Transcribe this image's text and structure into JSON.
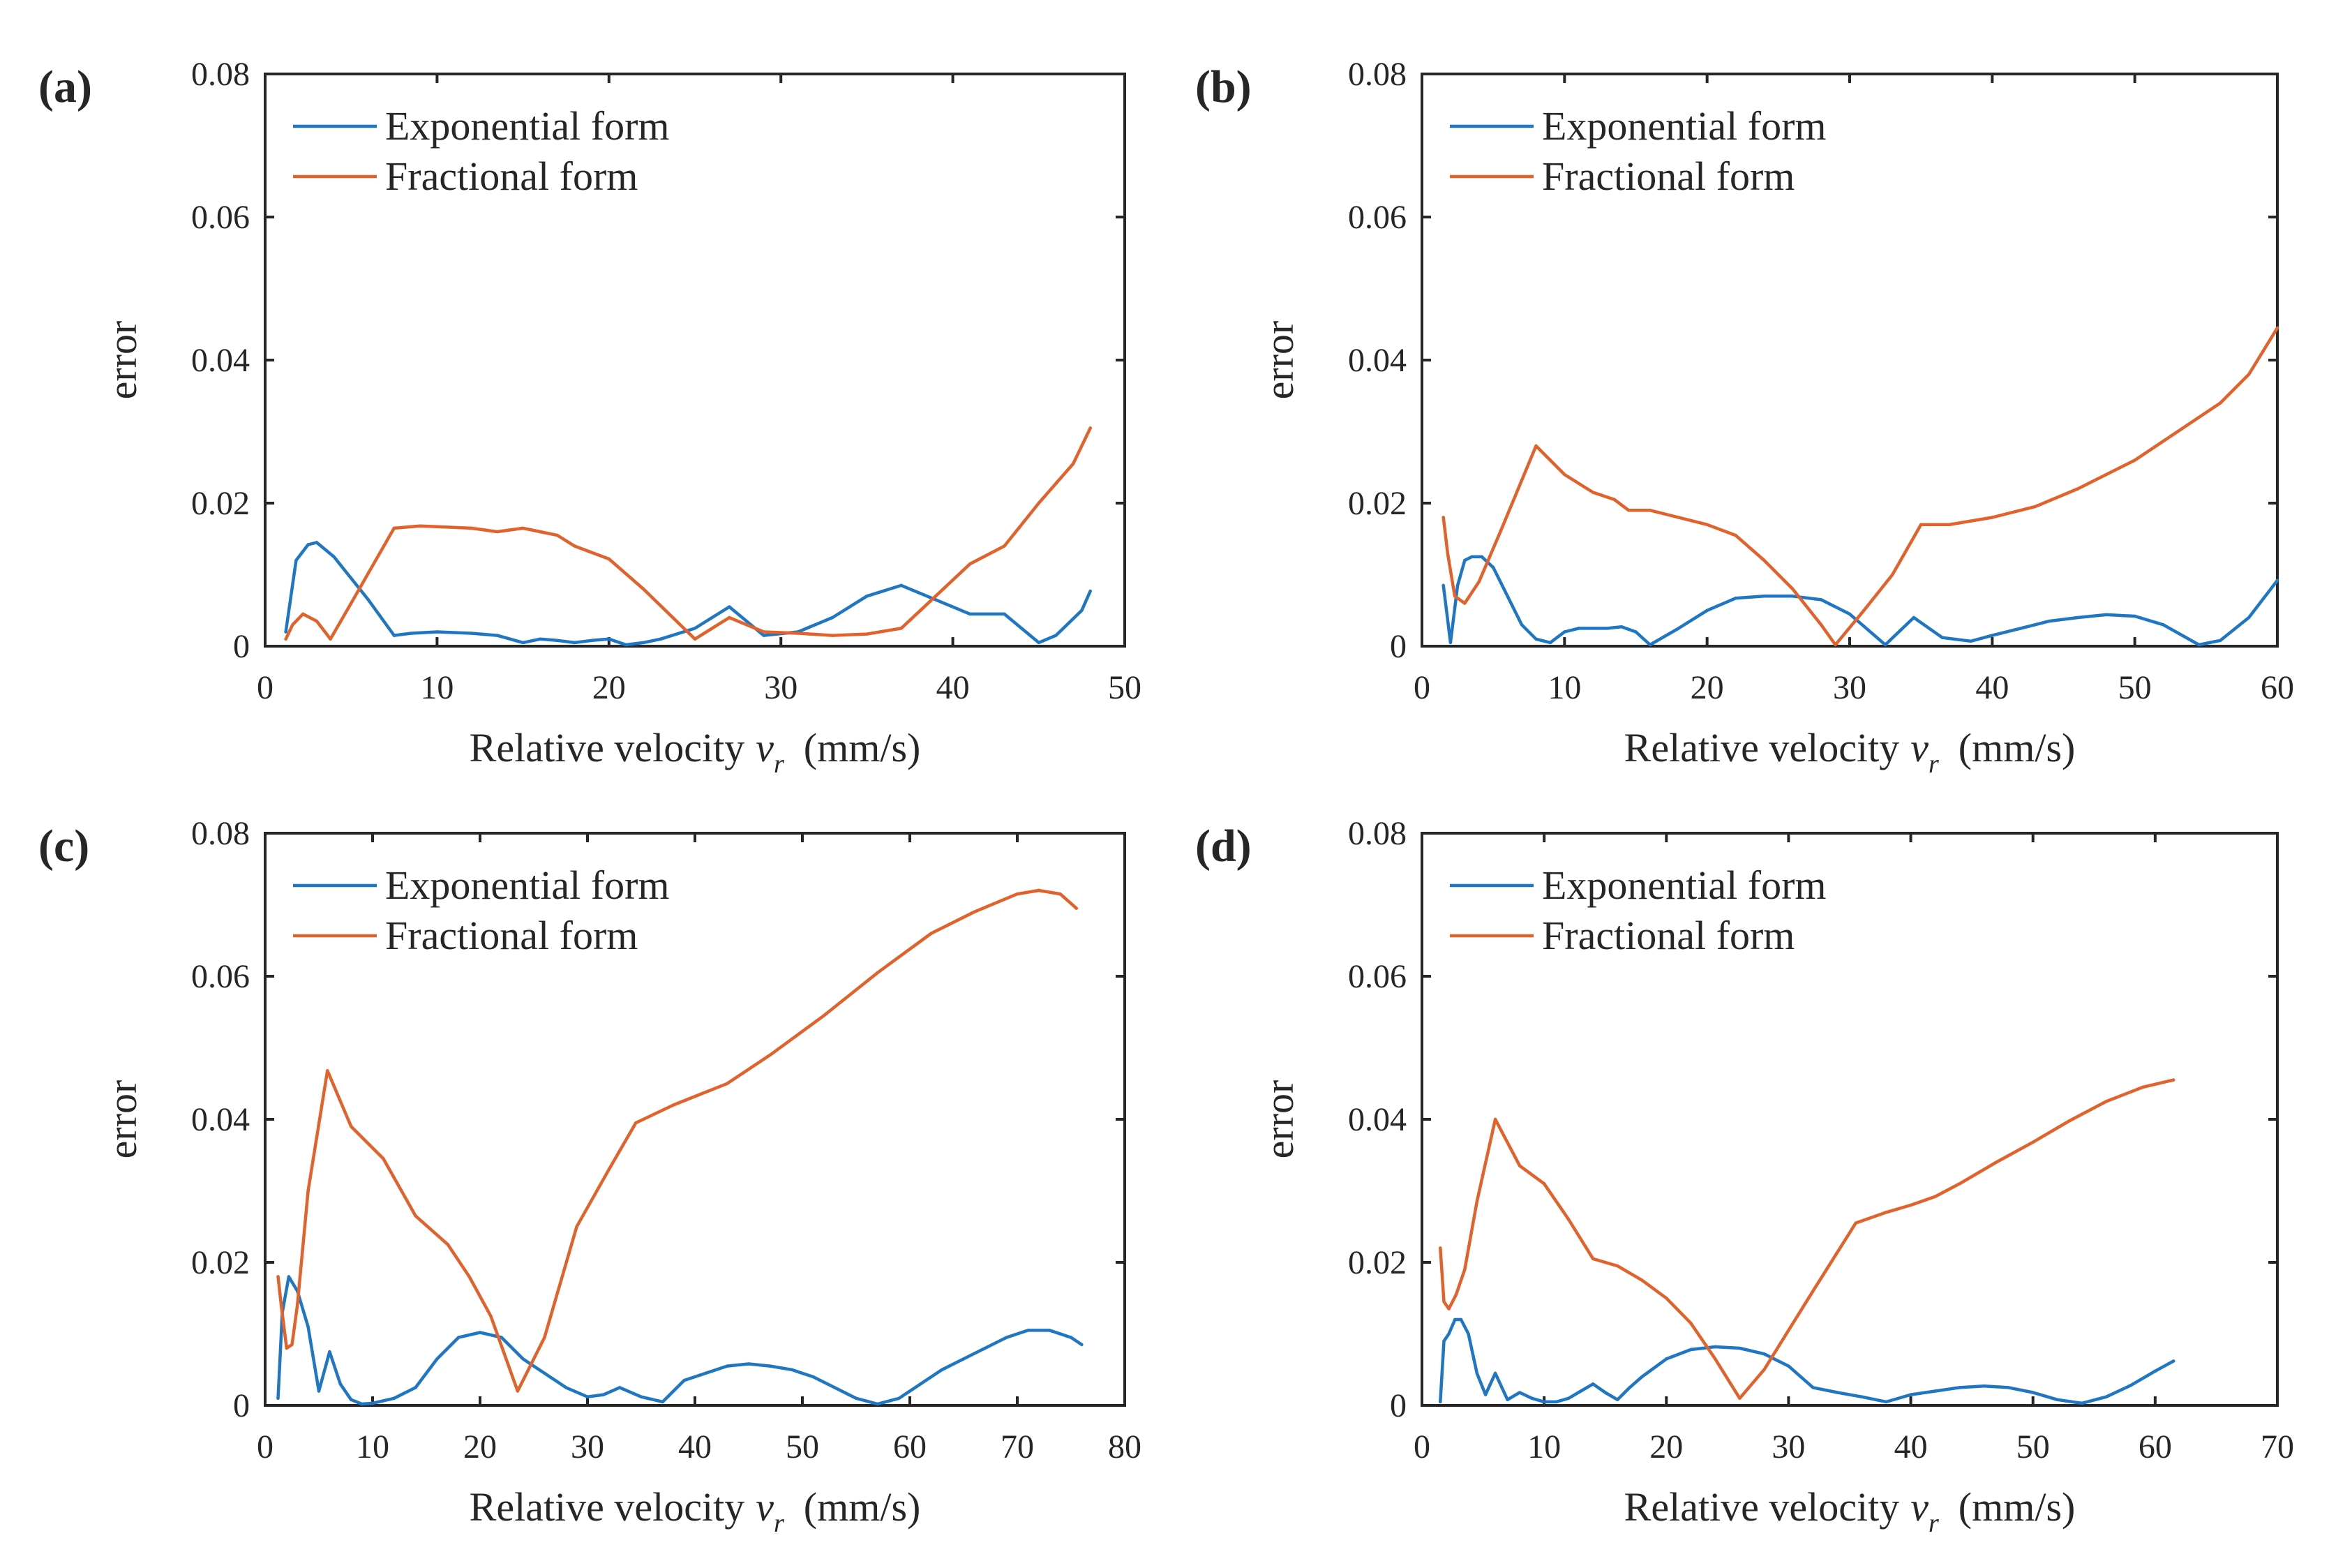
{
  "colors": {
    "exponential": "#1f77c4",
    "fractional": "#e1622b",
    "axis": "#262626"
  },
  "chart_data": [
    {
      "type": "line",
      "panel": "(a)",
      "xlabel_main": "Relative velocity",
      "xlabel_var": "v",
      "xlabel_sub": "r",
      "xlabel_unit": "(mm/s)",
      "ylabel": "error",
      "xlim": [
        0,
        50
      ],
      "ylim": [
        0,
        0.08
      ],
      "xticks": [
        0,
        10,
        20,
        30,
        40,
        50
      ],
      "xtick_labels": [
        "0",
        "10",
        "20",
        "30",
        "40",
        "50"
      ],
      "yticks": [
        0,
        0.02,
        0.04,
        0.06,
        0.08
      ],
      "ytick_labels": [
        "0",
        "0.02",
        "0.04",
        "0.06",
        "0.08"
      ],
      "legend_position": "top-left",
      "series": [
        {
          "name": "Exponential form",
          "x": [
            1.2,
            1.8,
            2.5,
            3,
            4,
            5,
            6,
            7.5,
            8.5,
            10,
            12,
            13.5,
            15,
            16,
            17,
            18,
            19,
            20,
            21,
            22,
            23,
            25,
            27,
            29,
            31,
            33,
            35,
            37,
            39,
            41,
            43,
            45,
            46,
            47.5,
            48
          ],
          "y": [
            0.002,
            0.012,
            0.0142,
            0.0145,
            0.0125,
            0.0095,
            0.0065,
            0.0015,
            0.0018,
            0.002,
            0.0018,
            0.0015,
            0.0005,
            0.001,
            0.0008,
            0.0005,
            0.0008,
            0.001,
            0.0002,
            0.0005,
            0.001,
            0.0025,
            0.0055,
            0.0015,
            0.002,
            0.004,
            0.007,
            0.0085,
            0.0065,
            0.0045,
            0.0045,
            0.0005,
            0.0015,
            0.005,
            0.0077
          ]
        },
        {
          "name": "Fractional form",
          "x": [
            1.2,
            1.6,
            2.2,
            3,
            3.8,
            5,
            7.5,
            9,
            10,
            12,
            13.5,
            15,
            16,
            17,
            18,
            20,
            22,
            25,
            27,
            29,
            31,
            33,
            35,
            37,
            39,
            41,
            43,
            45,
            47,
            48
          ],
          "y": [
            0.001,
            0.003,
            0.0045,
            0.0035,
            0.001,
            0.006,
            0.0165,
            0.0168,
            0.0167,
            0.0165,
            0.016,
            0.0165,
            0.016,
            0.0155,
            0.014,
            0.0122,
            0.008,
            0.001,
            0.004,
            0.002,
            0.0018,
            0.0015,
            0.0017,
            0.0025,
            0.007,
            0.0115,
            0.014,
            0.02,
            0.0255,
            0.0305
          ]
        }
      ]
    },
    {
      "type": "line",
      "panel": "(b)",
      "xlabel_main": "Relative velocity",
      "xlabel_var": "v",
      "xlabel_sub": "r",
      "xlabel_unit": "(mm/s)",
      "ylabel": "error",
      "xlim": [
        0,
        60
      ],
      "ylim": [
        0,
        0.08
      ],
      "xticks": [
        0,
        10,
        20,
        30,
        40,
        50,
        60
      ],
      "xtick_labels": [
        "0",
        "10",
        "20",
        "30",
        "40",
        "50",
        "60"
      ],
      "yticks": [
        0,
        0.02,
        0.04,
        0.06,
        0.08
      ],
      "ytick_labels": [
        "0",
        "0.02",
        "0.04",
        "0.06",
        "0.08"
      ],
      "legend_position": "top-left",
      "series": [
        {
          "name": "Exponential form",
          "x": [
            1.5,
            2,
            2.5,
            3,
            3.5,
            4.2,
            5,
            6,
            7,
            8,
            9,
            10,
            11,
            12,
            13,
            14,
            15,
            16,
            18,
            20,
            22,
            24,
            26,
            28,
            30,
            32.5,
            34.5,
            36.5,
            38.5,
            40,
            42,
            44,
            46,
            48,
            50,
            52,
            54.5,
            56,
            58,
            60
          ],
          "y": [
            0.0085,
            0.0005,
            0.0085,
            0.012,
            0.0125,
            0.0125,
            0.011,
            0.007,
            0.003,
            0.001,
            0.0005,
            0.002,
            0.0025,
            0.0025,
            0.0025,
            0.0027,
            0.002,
            0.0002,
            0.0025,
            0.005,
            0.0067,
            0.007,
            0.007,
            0.0065,
            0.0045,
            0.0002,
            0.004,
            0.0012,
            0.0007,
            0.0015,
            0.0025,
            0.0035,
            0.004,
            0.0044,
            0.0042,
            0.003,
            0.0002,
            0.0008,
            0.004,
            0.0092
          ]
        },
        {
          "name": "Fractional form",
          "x": [
            1.5,
            1.8,
            2.3,
            3,
            4,
            5.5,
            8,
            10,
            12,
            13.5,
            14.5,
            16,
            18,
            20,
            22,
            24,
            26,
            28,
            29,
            31,
            33,
            35,
            37,
            40,
            43,
            46,
            50,
            53,
            56,
            58,
            60
          ],
          "y": [
            0.018,
            0.013,
            0.007,
            0.006,
            0.009,
            0.016,
            0.028,
            0.024,
            0.0215,
            0.0205,
            0.019,
            0.019,
            0.018,
            0.017,
            0.0155,
            0.012,
            0.008,
            0.003,
            0.0002,
            0.005,
            0.01,
            0.017,
            0.017,
            0.018,
            0.0195,
            0.022,
            0.026,
            0.03,
            0.034,
            0.038,
            0.0445
          ]
        }
      ]
    },
    {
      "type": "line",
      "panel": "(c)",
      "xlabel_main": "Relative velocity",
      "xlabel_var": "v",
      "xlabel_sub": "r",
      "xlabel_unit": "(mm/s)",
      "ylabel": "error",
      "xlim": [
        0,
        80
      ],
      "ylim": [
        0,
        0.08
      ],
      "xticks": [
        0,
        10,
        20,
        30,
        40,
        50,
        60,
        70,
        80
      ],
      "xtick_labels": [
        "0",
        "10",
        "20",
        "30",
        "40",
        "50",
        "60",
        "70",
        "80"
      ],
      "yticks": [
        0,
        0.02,
        0.04,
        0.06,
        0.08
      ],
      "ytick_labels": [
        "0",
        "0.02",
        "0.04",
        "0.06",
        "0.08"
      ],
      "legend_position": "top-left",
      "series": [
        {
          "name": "Exponential form",
          "x": [
            1.2,
            1.6,
            2.2,
            3,
            4,
            5,
            6,
            7,
            8,
            9,
            10,
            12,
            14,
            16,
            18,
            20,
            22,
            24,
            26,
            28,
            30,
            31.5,
            33,
            35,
            37,
            39,
            41,
            43,
            45,
            47,
            49,
            51,
            53,
            55,
            57,
            59,
            61,
            63,
            65,
            67,
            69,
            71,
            73,
            75,
            76
          ],
          "y": [
            0.001,
            0.013,
            0.018,
            0.016,
            0.011,
            0.002,
            0.0075,
            0.003,
            0.0008,
            0.0002,
            0.0003,
            0.001,
            0.0025,
            0.0065,
            0.0095,
            0.0102,
            0.0095,
            0.0065,
            0.0045,
            0.0025,
            0.0012,
            0.0015,
            0.0025,
            0.0012,
            0.0005,
            0.0035,
            0.0045,
            0.0055,
            0.0058,
            0.0055,
            0.005,
            0.004,
            0.0025,
            0.001,
            0.0002,
            0.001,
            0.003,
            0.005,
            0.0065,
            0.008,
            0.0095,
            0.0105,
            0.0105,
            0.0095,
            0.0085
          ]
        },
        {
          "name": "Fractional form",
          "x": [
            1.2,
            1.5,
            2,
            2.5,
            3,
            4,
            5.8,
            8,
            11,
            14,
            17,
            19,
            21,
            23.5,
            26,
            29,
            32,
            34.5,
            38,
            43,
            47,
            52,
            57,
            62,
            66,
            70,
            72,
            74,
            75.5
          ],
          "y": [
            0.018,
            0.014,
            0.008,
            0.0085,
            0.014,
            0.03,
            0.0468,
            0.039,
            0.0345,
            0.0265,
            0.0225,
            0.018,
            0.0125,
            0.002,
            0.0095,
            0.025,
            0.033,
            0.0395,
            0.042,
            0.045,
            0.049,
            0.0545,
            0.0605,
            0.066,
            0.069,
            0.0715,
            0.072,
            0.0715,
            0.0695
          ]
        }
      ]
    },
    {
      "type": "line",
      "panel": "(d)",
      "xlabel_main": "Relative velocity",
      "xlabel_var": "v",
      "xlabel_sub": "r",
      "xlabel_unit": "(mm/s)",
      "ylabel": "error",
      "xlim": [
        0,
        70
      ],
      "ylim": [
        0,
        0.08
      ],
      "xticks": [
        0,
        10,
        20,
        30,
        40,
        50,
        60,
        70
      ],
      "xtick_labels": [
        "0",
        "10",
        "20",
        "30",
        "40",
        "50",
        "60",
        "70"
      ],
      "yticks": [
        0,
        0.02,
        0.04,
        0.06,
        0.08
      ],
      "ytick_labels": [
        "0",
        "0.02",
        "0.04",
        "0.06",
        "0.08"
      ],
      "legend_position": "top-left",
      "series": [
        {
          "name": "Exponential form",
          "x": [
            1.5,
            1.8,
            2.2,
            2.7,
            3.2,
            3.8,
            4.5,
            5.2,
            6,
            7,
            8,
            9,
            10,
            11,
            12,
            13,
            14,
            15,
            16,
            17,
            18,
            20,
            22,
            24,
            26,
            28,
            30,
            32,
            34,
            36,
            38,
            40,
            42,
            44,
            46,
            48,
            50,
            52,
            54,
            56,
            58,
            60,
            61.5
          ],
          "y": [
            0.0005,
            0.009,
            0.01,
            0.012,
            0.012,
            0.01,
            0.0045,
            0.0015,
            0.0045,
            0.0008,
            0.0018,
            0.001,
            0.0005,
            0.0005,
            0.001,
            0.002,
            0.003,
            0.0018,
            0.0008,
            0.0025,
            0.004,
            0.0065,
            0.0078,
            0.0082,
            0.008,
            0.0072,
            0.0055,
            0.0025,
            0.0018,
            0.0012,
            0.0005,
            0.0015,
            0.002,
            0.0025,
            0.0027,
            0.0025,
            0.0018,
            0.0008,
            0.0003,
            0.0012,
            0.0028,
            0.0048,
            0.0062
          ]
        },
        {
          "name": "Fractional form",
          "x": [
            1.5,
            1.8,
            2.2,
            2.8,
            3.5,
            4.5,
            6,
            8,
            10,
            12,
            14,
            16,
            18,
            20,
            22,
            24,
            26,
            28,
            30,
            32,
            35.5,
            38,
            40,
            42,
            44,
            47,
            50,
            53,
            56,
            59,
            61.5
          ],
          "y": [
            0.022,
            0.0145,
            0.0135,
            0.0155,
            0.019,
            0.0285,
            0.04,
            0.0335,
            0.031,
            0.026,
            0.0205,
            0.0195,
            0.0175,
            0.015,
            0.0115,
            0.0065,
            0.001,
            0.005,
            0.0105,
            0.016,
            0.0255,
            0.027,
            0.028,
            0.0292,
            0.031,
            0.034,
            0.0368,
            0.0398,
            0.0425,
            0.0445,
            0.0455
          ]
        }
      ]
    }
  ]
}
